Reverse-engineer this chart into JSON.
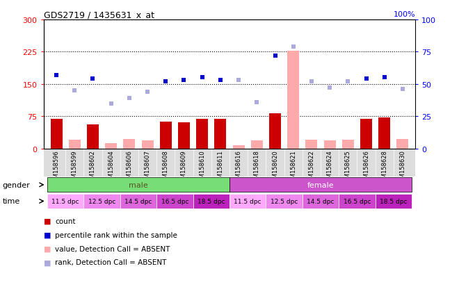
{
  "title": "GDS2719 / 1435631_x_at",
  "samples": [
    "GSM158596",
    "GSM158599",
    "GSM158602",
    "GSM158604",
    "GSM158606",
    "GSM158607",
    "GSM158608",
    "GSM158609",
    "GSM158610",
    "GSM158611",
    "GSM158616",
    "GSM158618",
    "GSM158620",
    "GSM158621",
    "GSM158622",
    "GSM158624",
    "GSM158625",
    "GSM158626",
    "GSM158628",
    "GSM158630"
  ],
  "bar_values": [
    68,
    20,
    55,
    12,
    22,
    18,
    62,
    60,
    68,
    68,
    8,
    18,
    82,
    228,
    20,
    18,
    20,
    68,
    72,
    22
  ],
  "bar_absent": [
    false,
    true,
    false,
    true,
    true,
    true,
    false,
    false,
    false,
    false,
    true,
    true,
    false,
    true,
    true,
    true,
    true,
    false,
    false,
    true
  ],
  "rank_values": [
    57,
    45,
    54,
    35,
    39,
    44,
    52,
    53,
    55,
    53,
    53,
    36,
    72,
    79,
    52,
    47,
    52,
    54,
    55,
    46
  ],
  "rank_absent": [
    false,
    true,
    false,
    true,
    true,
    true,
    false,
    false,
    false,
    false,
    true,
    true,
    false,
    true,
    true,
    true,
    true,
    false,
    false,
    true
  ],
  "ylim_left": [
    0,
    300
  ],
  "ylim_right": [
    0,
    100
  ],
  "yticks_left": [
    0,
    75,
    150,
    225,
    300
  ],
  "yticks_right": [
    0,
    25,
    50,
    75,
    100
  ],
  "bar_color_present": "#cc0000",
  "bar_color_absent": "#ffaaaa",
  "rank_color_present": "#0000cc",
  "rank_color_absent": "#aaaadd",
  "gender_male_color": "#77dd77",
  "gender_female_color": "#cc55cc",
  "time_colors": [
    "#ffaaff",
    "#ee88ee",
    "#dd66dd",
    "#cc44cc",
    "#bb22bb"
  ],
  "dpc_labels": [
    "11.5 dpc",
    "12.5 dpc",
    "14.5 dpc",
    "16.5 dpc",
    "18.5 dpc"
  ]
}
